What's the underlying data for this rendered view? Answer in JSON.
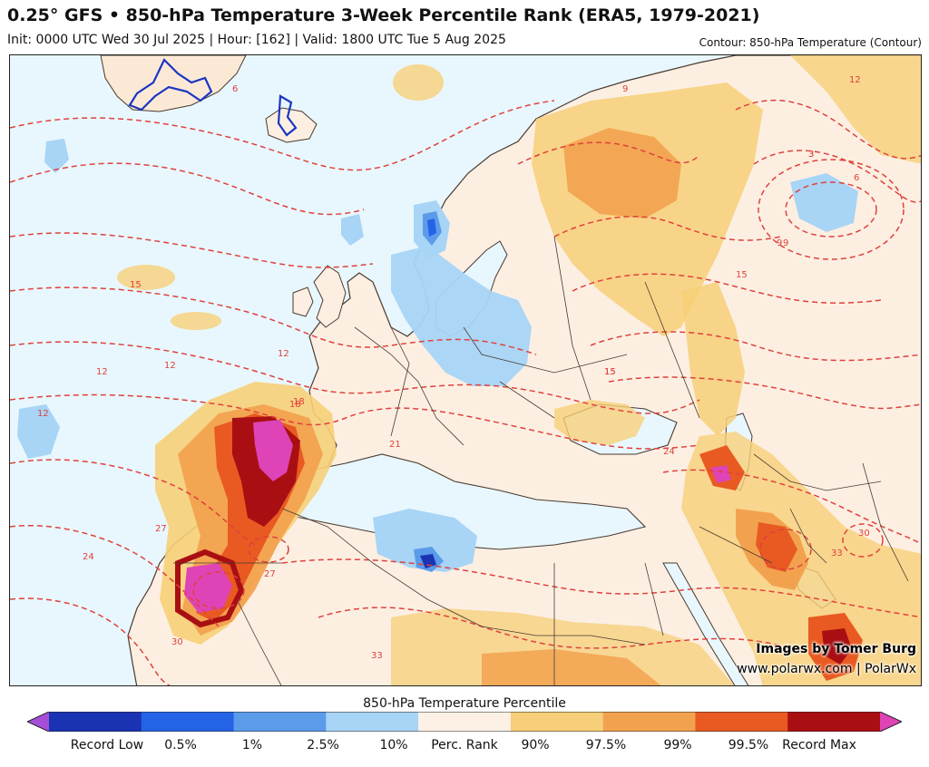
{
  "header": {
    "title": "0.25° GFS • 850-hPa Temperature 3-Week Percentile Rank (ERA5, 1979-2021)",
    "subtitle": "Init: 0000 UTC Wed 30 Jul 2025 | Hour: [162] | Valid: 1800 UTC Tue 5 Aug 2025",
    "contour_note": "Contour: 850-hPa Temperature (Contour)"
  },
  "credits": {
    "line1": "Images by Tomer Burg",
    "line2": "www.polarwx.com | PolarWx"
  },
  "colorbar": {
    "title": "850-hPa Temperature Percentile",
    "labels": [
      "Record Low",
      "0.5%",
      "1%",
      "2.5%",
      "10%",
      "Perc. Rank",
      "90%",
      "97.5%",
      "99%",
      "99.5%",
      "Record Max"
    ],
    "colors": [
      "#a64ed8",
      "#1a33b3",
      "#2463e6",
      "#5b9bea",
      "#a8d4f5",
      "#fdf1e6",
      "#f7cf78",
      "#f2a24f",
      "#e85a22",
      "#a90f12",
      "#de44b6"
    ]
  },
  "contour_labels": [
    "9",
    "12",
    "15",
    "18",
    "21",
    "24",
    "27",
    "30",
    "33",
    "3",
    "6",
    "9",
    "12",
    "15",
    "18",
    "24",
    "27",
    "30",
    "33",
    "15",
    "15",
    "12",
    "12",
    "12",
    "6",
    "3",
    "9"
  ],
  "colors": {
    "ocean_base": "#e8f7fd",
    "land_base": "#fcefe2",
    "border": "#4a3a30",
    "contour": "#e0413c",
    "coldline": "#1b36c2"
  }
}
